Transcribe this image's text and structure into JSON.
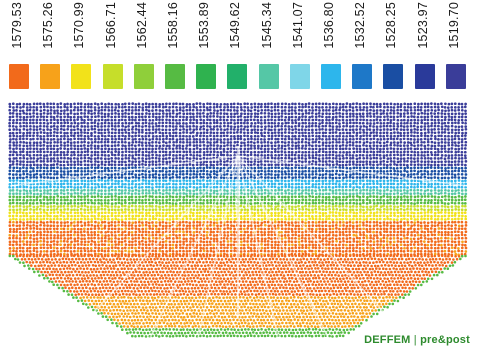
{
  "legend": {
    "entries": [
      {
        "value": "1579.53",
        "color": "#f26a1b"
      },
      {
        "value": "1575.26",
        "color": "#f7a21a"
      },
      {
        "value": "1570.99",
        "color": "#f2e21a"
      },
      {
        "value": "1566.71",
        "color": "#c6de2a"
      },
      {
        "value": "1562.44",
        "color": "#8fcf3a"
      },
      {
        "value": "1558.16",
        "color": "#56bb43"
      },
      {
        "value": "1553.89",
        "color": "#2fb24f"
      },
      {
        "value": "1549.62",
        "color": "#22b06a"
      },
      {
        "value": "1545.34",
        "color": "#55c7a6"
      },
      {
        "value": "1541.07",
        "color": "#7fd6e8"
      },
      {
        "value": "1536.80",
        "color": "#2db6ec"
      },
      {
        "value": "1532.52",
        "color": "#1e78c8"
      },
      {
        "value": "1528.25",
        "color": "#1a4ea3"
      },
      {
        "value": "1523.97",
        "color": "#2a3a9a"
      },
      {
        "value": "1519.70",
        "color": "#3a3d99"
      }
    ]
  },
  "logo": {
    "brand": "DEFFEM",
    "separator": "|",
    "tagline": "pre&post"
  }
}
